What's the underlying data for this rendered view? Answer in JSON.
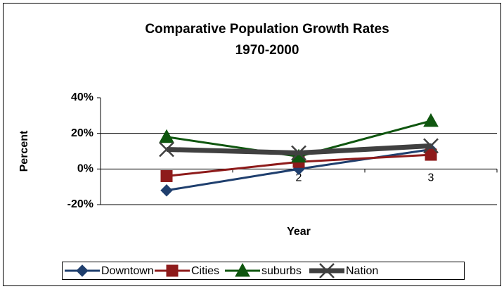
{
  "chart_data": {
    "type": "line",
    "title": "Comparative Population Growth Rates",
    "subtitle": "1970-2000",
    "x_label": "Year",
    "y_label": "Percent",
    "categories": [
      null,
      "2",
      "3"
    ],
    "series": [
      {
        "name": "Downtown",
        "color": "#1f3f6e",
        "marker": "diamond",
        "values": [
          -12,
          0,
          11
        ]
      },
      {
        "name": "Cities",
        "color": "#8e1b1b",
        "marker": "square",
        "values": [
          -4,
          4,
          8
        ]
      },
      {
        "name": "suburbs",
        "color": "#0f560f",
        "marker": "triangle",
        "values": [
          18,
          7,
          27
        ]
      },
      {
        "name": "Nation",
        "color": "#404040",
        "marker": "x",
        "values": [
          11,
          9,
          13
        ]
      }
    ],
    "ylim": [
      -20,
      40
    ],
    "yticks": [
      {
        "value": -20,
        "label": "-20%"
      },
      {
        "value": 0,
        "label": "0%"
      },
      {
        "value": 20,
        "label": "20%"
      },
      {
        "value": 40,
        "label": "40%"
      }
    ],
    "grid": true,
    "legend": "bottom"
  }
}
